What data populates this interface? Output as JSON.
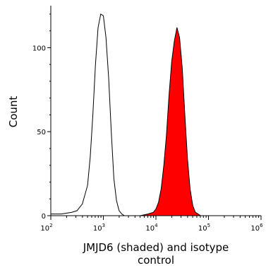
{
  "chart_data": {
    "type": "area",
    "xlabel_lines": [
      "JMJD6 (shaded) and isotype",
      "control"
    ],
    "ylabel": "Count",
    "x_scale": "log",
    "xlim": [
      100,
      1000000
    ],
    "ylim": [
      0,
      125
    ],
    "x_ticks": [
      {
        "value": 100,
        "base": "10",
        "exp": "2"
      },
      {
        "value": 1000,
        "base": "10",
        "exp": "3"
      },
      {
        "value": 10000,
        "base": "10",
        "exp": "4"
      },
      {
        "value": 100000,
        "base": "10",
        "exp": "5"
      },
      {
        "value": 1000000,
        "base": "10",
        "exp": "6"
      }
    ],
    "y_ticks": [
      0,
      50,
      100
    ],
    "grid": false,
    "legend": "none",
    "series": [
      {
        "color": "#000000",
        "fill": "none",
        "x": [
          100,
          158,
          251,
          316,
          398,
          501,
          562,
          631,
          708,
          794,
          891,
          1000,
          1122,
          1259,
          1413,
          1585,
          1778,
          1995,
          2239,
          2512,
          3162,
          5012,
          10000,
          100000,
          1000000
        ],
        "y": [
          1,
          1,
          2,
          3,
          7,
          18,
          35,
          60,
          90,
          112,
          120,
          119,
          106,
          82,
          50,
          22,
          9,
          3,
          1,
          0,
          0,
          0,
          0,
          0,
          0
        ]
      },
      {
        "color": "#000000",
        "fill": "#ff0000",
        "x": [
          100,
          1000,
          5012,
          7079,
          8913,
          10000,
          11220,
          12589,
          14125,
          15849,
          17783,
          19953,
          22387,
          25119,
          28184,
          31623,
          35481,
          39811,
          44668,
          50119,
          56234,
          63096,
          70795,
          100000,
          1000000
        ],
        "y": [
          0,
          0,
          0,
          1,
          2,
          4,
          8,
          16,
          30,
          48,
          72,
          92,
          104,
          112,
          106,
          88,
          60,
          34,
          16,
          6,
          2,
          1,
          0,
          0,
          0
        ]
      }
    ]
  }
}
